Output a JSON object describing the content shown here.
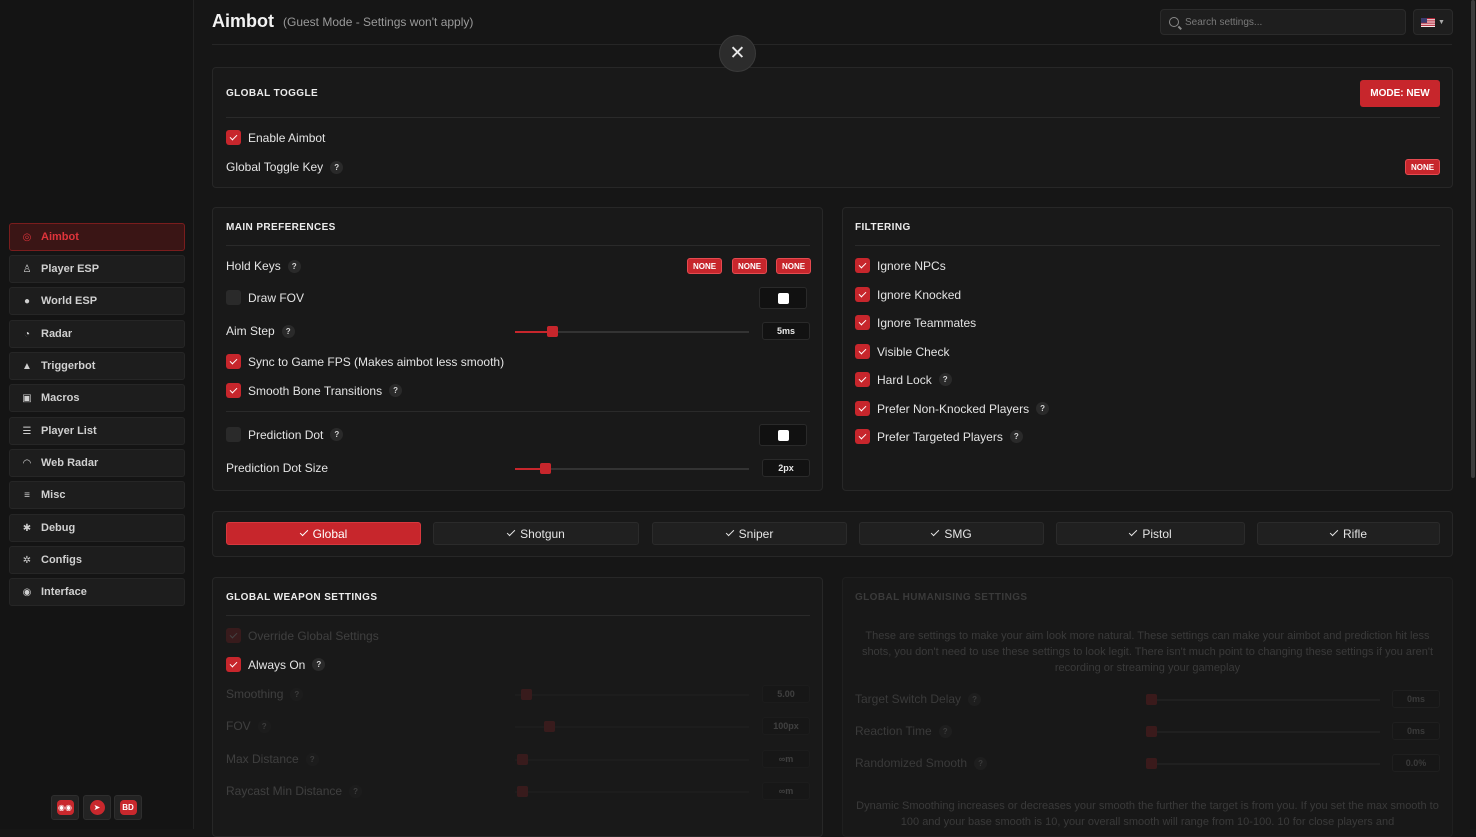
{
  "sidebar": {
    "items": [
      {
        "label": "Aimbot",
        "icon": "crosshair-icon",
        "active": true
      },
      {
        "label": "Player ESP",
        "icon": "person-icon"
      },
      {
        "label": "World ESP",
        "icon": "globe-icon"
      },
      {
        "label": "Radar",
        "icon": "radar-icon"
      },
      {
        "label": "Triggerbot",
        "icon": "trigger-icon"
      },
      {
        "label": "Macros",
        "icon": "robot-icon"
      },
      {
        "label": "Player List",
        "icon": "list-icon"
      },
      {
        "label": "Web Radar",
        "icon": "wifi-icon"
      },
      {
        "label": "Misc",
        "icon": "menu-icon"
      },
      {
        "label": "Debug",
        "icon": "bug-icon"
      },
      {
        "label": "Configs",
        "icon": "gear-icon"
      },
      {
        "label": "Interface",
        "icon": "palette-icon"
      }
    ],
    "social": [
      {
        "name": "discord-icon",
        "label": ""
      },
      {
        "name": "telegram-icon",
        "label": ""
      },
      {
        "name": "bd-icon",
        "label": "BD"
      }
    ]
  },
  "header": {
    "title": "Aimbot",
    "subtitle": "(Guest Mode - Settings won't apply)",
    "search_placeholder": "Search settings...",
    "language": "US"
  },
  "colors": {
    "accent": "#c7262c",
    "bg": "#161616",
    "panel": "#191919"
  },
  "global_toggle": {
    "title": "GLOBAL TOGGLE",
    "mode_button": "MODE: NEW",
    "enable_label": "Enable Aimbot",
    "enable_checked": true,
    "key_label": "Global Toggle Key",
    "key_value": "NONE"
  },
  "main_prefs": {
    "title": "MAIN PREFERENCES",
    "hold_keys_label": "Hold Keys",
    "hold_keys": [
      "NONE",
      "NONE",
      "NONE"
    ],
    "draw_fov_label": "Draw FOV",
    "draw_fov_checked": false,
    "aim_step_label": "Aim Step",
    "aim_step_value": "5ms",
    "aim_step_fraction": 0.16,
    "sync_label": "Sync to Game FPS (Makes aimbot less smooth)",
    "sync_checked": true,
    "smooth_bone_label": "Smooth Bone Transitions",
    "smooth_bone_checked": true,
    "pred_dot_label": "Prediction Dot",
    "pred_dot_checked": false,
    "pred_size_label": "Prediction Dot Size",
    "pred_size_value": "2px",
    "pred_size_fraction": 0.13
  },
  "filtering": {
    "title": "FILTERING",
    "items": [
      {
        "label": "Ignore NPCs",
        "help": false
      },
      {
        "label": "Ignore Knocked",
        "help": false
      },
      {
        "label": "Ignore Teammates",
        "help": false
      },
      {
        "label": "Visible Check",
        "help": false
      },
      {
        "label": "Hard Lock",
        "help": true
      },
      {
        "label": "Prefer Non-Knocked Players",
        "help": true
      },
      {
        "label": "Prefer Targeted Players",
        "help": true
      }
    ]
  },
  "weapon_tabs": [
    "Global",
    "Shotgun",
    "Sniper",
    "SMG",
    "Pistol",
    "Rifle"
  ],
  "weapon_settings": {
    "title": "GLOBAL WEAPON SETTINGS",
    "override_label": "Override Global Settings",
    "always_on_label": "Always On",
    "smoothing_label": "Smoothing",
    "smoothing_value": "5.00",
    "fov_label": "FOV",
    "fov_value": "100px",
    "max_distance_label": "Max Distance",
    "max_distance_value": "∞m",
    "raycast_label": "Raycast Min Distance",
    "raycast_value": "∞m"
  },
  "humanising": {
    "title": "GLOBAL HUMANISING SETTINGS",
    "description": "These are settings to make your aim look more natural. These settings can make your aimbot and prediction hit less shots, you don't need to use these settings to look legit. There isn't much point to changing these settings if you aren't recording or streaming your gameplay",
    "target_switch_label": "Target Switch Delay",
    "target_switch_value": "0ms",
    "reaction_label": "Reaction Time",
    "reaction_value": "0ms",
    "randomized_label": "Randomized Smooth",
    "randomized_value": "0.0%",
    "dynamic_text": "Dynamic Smoothing increases or decreases your smooth the further the target is from you. If you set the max smooth to 100 and your base smooth is 10, your overall smooth will range from 10-100. 10 for close players and"
  }
}
